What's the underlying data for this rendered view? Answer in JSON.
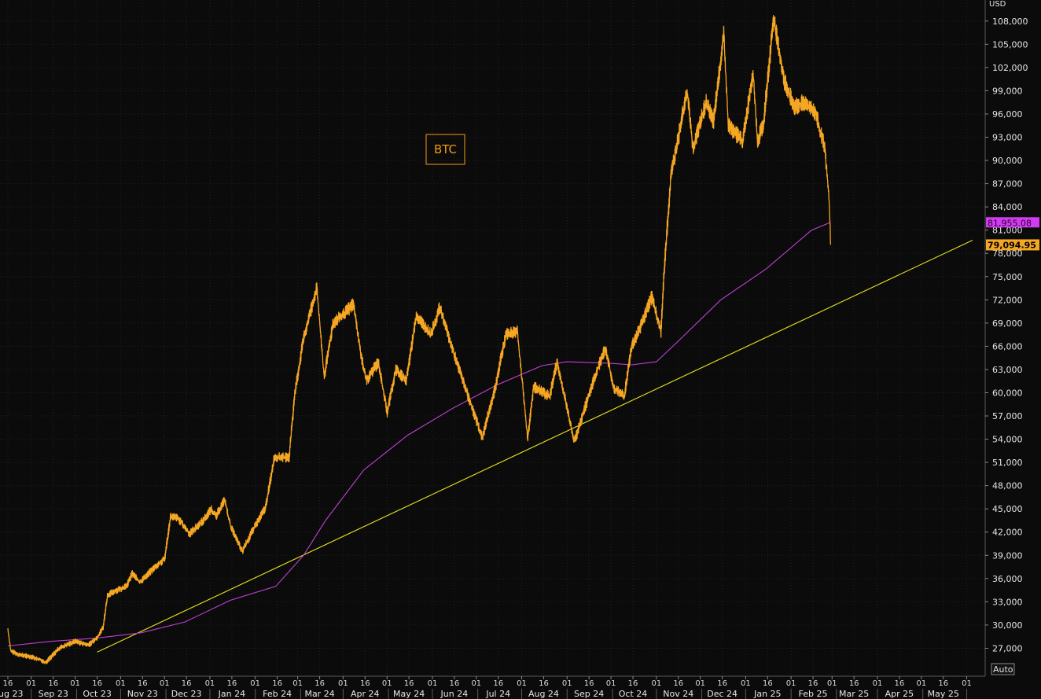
{
  "chart_data": {
    "type": "line",
    "title": "BTC",
    "currency": "USD",
    "colors": {
      "background": "#0b0b0b",
      "grid": "#222222",
      "price": "#f5a623",
      "moving_average": "#c040d8",
      "trendline": "#e8e020",
      "ma_badge": "#d23cf0",
      "price_badge": "#f5a623",
      "axis_text": "#e6e6e6"
    },
    "ylim": [
      24000,
      109500
    ],
    "y_ticks": [
      27000,
      30000,
      33000,
      36000,
      39000,
      42000,
      45000,
      48000,
      51000,
      54000,
      57000,
      60000,
      63000,
      66000,
      69000,
      72000,
      75000,
      78000,
      81000,
      84000,
      87000,
      90000,
      93000,
      96000,
      99000,
      102000,
      105000,
      108000
    ],
    "y_tick_labels": [
      "27,000",
      "30,000",
      "33,000",
      "36,000",
      "39,000",
      "42,000",
      "45,000",
      "48,000",
      "51,000",
      "54,000",
      "57,000",
      "60,000",
      "63,000",
      "66,000",
      "69,000",
      "72,000",
      "75,000",
      "78,000",
      "81,000",
      "84,000",
      "87,000",
      "90,000",
      "93,000",
      "96,000",
      "99,000",
      "102,000",
      "105,000",
      "108,000"
    ],
    "x_range": [
      "2023-08-16",
      "2025-06-05"
    ],
    "x_day_ticks": [
      {
        "date": "2023-08-16",
        "label": "16"
      },
      {
        "date": "2023-09-01",
        "label": "01"
      },
      {
        "date": "2023-09-16",
        "label": "16"
      },
      {
        "date": "2023-10-01",
        "label": "01"
      },
      {
        "date": "2023-10-16",
        "label": "16"
      },
      {
        "date": "2023-11-01",
        "label": "01"
      },
      {
        "date": "2023-11-16",
        "label": "16"
      },
      {
        "date": "2023-12-01",
        "label": "01"
      },
      {
        "date": "2023-12-16",
        "label": "16"
      },
      {
        "date": "2024-01-01",
        "label": "01"
      },
      {
        "date": "2024-01-16",
        "label": "16"
      },
      {
        "date": "2024-02-01",
        "label": "01"
      },
      {
        "date": "2024-02-16",
        "label": "16"
      },
      {
        "date": "2024-03-01",
        "label": "01"
      },
      {
        "date": "2024-03-16",
        "label": "16"
      },
      {
        "date": "2024-04-01",
        "label": "01"
      },
      {
        "date": "2024-04-16",
        "label": "16"
      },
      {
        "date": "2024-05-01",
        "label": "01"
      },
      {
        "date": "2024-05-16",
        "label": "16"
      },
      {
        "date": "2024-06-01",
        "label": "01"
      },
      {
        "date": "2024-06-16",
        "label": "16"
      },
      {
        "date": "2024-07-01",
        "label": "01"
      },
      {
        "date": "2024-07-16",
        "label": "16"
      },
      {
        "date": "2024-08-01",
        "label": "01"
      },
      {
        "date": "2024-08-16",
        "label": "16"
      },
      {
        "date": "2024-09-01",
        "label": "01"
      },
      {
        "date": "2024-09-16",
        "label": "16"
      },
      {
        "date": "2024-10-01",
        "label": "01"
      },
      {
        "date": "2024-10-16",
        "label": "16"
      },
      {
        "date": "2024-11-01",
        "label": "01"
      },
      {
        "date": "2024-11-16",
        "label": "16"
      },
      {
        "date": "2024-12-01",
        "label": "01"
      },
      {
        "date": "2024-12-16",
        "label": "16"
      },
      {
        "date": "2025-01-01",
        "label": "01"
      },
      {
        "date": "2025-01-16",
        "label": "16"
      },
      {
        "date": "2025-02-01",
        "label": "01"
      },
      {
        "date": "2025-02-16",
        "label": "16"
      },
      {
        "date": "2025-03-01",
        "label": "01"
      },
      {
        "date": "2025-03-16",
        "label": "16"
      },
      {
        "date": "2025-04-01",
        "label": "01"
      },
      {
        "date": "2025-04-16",
        "label": "16"
      },
      {
        "date": "2025-05-01",
        "label": "01"
      },
      {
        "date": "2025-05-16",
        "label": "16"
      },
      {
        "date": "2025-06-01",
        "label": "01"
      }
    ],
    "x_month_labels": [
      {
        "date": "2023-08-16",
        "label": "Aug 23"
      },
      {
        "date": "2023-09-16",
        "label": "Sep 23"
      },
      {
        "date": "2023-10-16",
        "label": "Oct 23"
      },
      {
        "date": "2023-11-16",
        "label": "Nov 23"
      },
      {
        "date": "2023-12-16",
        "label": "Dec 23"
      },
      {
        "date": "2024-01-16",
        "label": "Jan 24"
      },
      {
        "date": "2024-02-16",
        "label": "Feb 24"
      },
      {
        "date": "2024-03-16",
        "label": "Mar 24"
      },
      {
        "date": "2024-04-16",
        "label": "Apr 24"
      },
      {
        "date": "2024-05-16",
        "label": "May 24"
      },
      {
        "date": "2024-06-16",
        "label": "Jun 24"
      },
      {
        "date": "2024-07-16",
        "label": "Jul 24"
      },
      {
        "date": "2024-08-16",
        "label": "Aug 24"
      },
      {
        "date": "2024-09-16",
        "label": "Sep 24"
      },
      {
        "date": "2024-10-16",
        "label": "Oct 24"
      },
      {
        "date": "2024-11-16",
        "label": "Nov 24"
      },
      {
        "date": "2024-12-16",
        "label": "Dec 24"
      },
      {
        "date": "2025-01-16",
        "label": "Jan 25"
      },
      {
        "date": "2025-02-16",
        "label": "Feb 25"
      },
      {
        "date": "2025-03-16",
        "label": "Mar 25"
      },
      {
        "date": "2025-04-16",
        "label": "Apr 25"
      },
      {
        "date": "2025-05-16",
        "label": "May 25"
      }
    ],
    "series": [
      {
        "name": "BTC",
        "points": [
          [
            "2023-08-16",
            29400
          ],
          [
            "2023-08-18",
            26600
          ],
          [
            "2023-08-25",
            26100
          ],
          [
            "2023-09-01",
            25900
          ],
          [
            "2023-09-11",
            25200
          ],
          [
            "2023-09-20",
            27000
          ],
          [
            "2023-10-01",
            27900
          ],
          [
            "2023-10-10",
            27400
          ],
          [
            "2023-10-16",
            28400
          ],
          [
            "2023-10-20",
            29700
          ],
          [
            "2023-10-23",
            33800
          ],
          [
            "2023-10-28",
            34400
          ],
          [
            "2023-11-05",
            35000
          ],
          [
            "2023-11-09",
            36700
          ],
          [
            "2023-11-14",
            35500
          ],
          [
            "2023-11-24",
            37400
          ],
          [
            "2023-12-01",
            38500
          ],
          [
            "2023-12-05",
            44000
          ],
          [
            "2023-12-10",
            43800
          ],
          [
            "2023-12-18",
            41800
          ],
          [
            "2023-12-27",
            43400
          ],
          [
            "2024-01-02",
            45000
          ],
          [
            "2024-01-05",
            44000
          ],
          [
            "2024-01-11",
            46200
          ],
          [
            "2024-01-15",
            42800
          ],
          [
            "2024-01-23",
            39500
          ],
          [
            "2024-01-31",
            42500
          ],
          [
            "2024-02-08",
            45200
          ],
          [
            "2024-02-14",
            51700
          ],
          [
            "2024-02-24",
            51600
          ],
          [
            "2024-02-28",
            60000
          ],
          [
            "2024-03-05",
            67000
          ],
          [
            "2024-03-11",
            71500
          ],
          [
            "2024-03-14",
            73500
          ],
          [
            "2024-03-19",
            62000
          ],
          [
            "2024-03-25",
            69000
          ],
          [
            "2024-04-01",
            70000
          ],
          [
            "2024-04-08",
            71500
          ],
          [
            "2024-04-13",
            65000
          ],
          [
            "2024-04-17",
            61500
          ],
          [
            "2024-04-25",
            64000
          ],
          [
            "2024-05-01",
            57500
          ],
          [
            "2024-05-07",
            63000
          ],
          [
            "2024-05-14",
            61500
          ],
          [
            "2024-05-21",
            70000
          ],
          [
            "2024-05-31",
            67500
          ],
          [
            "2024-06-06",
            71000
          ],
          [
            "2024-06-14",
            66000
          ],
          [
            "2024-06-24",
            60300
          ],
          [
            "2024-07-05",
            54200
          ],
          [
            "2024-07-14",
            60800
          ],
          [
            "2024-07-21",
            67500
          ],
          [
            "2024-07-29",
            68000
          ],
          [
            "2024-08-05",
            54000
          ],
          [
            "2024-08-09",
            60800
          ],
          [
            "2024-08-20",
            59500
          ],
          [
            "2024-08-25",
            64000
          ],
          [
            "2024-09-06",
            53700
          ],
          [
            "2024-09-18",
            61000
          ],
          [
            "2024-09-27",
            65800
          ],
          [
            "2024-10-03",
            60500
          ],
          [
            "2024-10-10",
            59500
          ],
          [
            "2024-10-15",
            66000
          ],
          [
            "2024-10-21",
            68500
          ],
          [
            "2024-10-29",
            72500
          ],
          [
            "2024-11-04",
            67800
          ],
          [
            "2024-11-06",
            75000
          ],
          [
            "2024-11-11",
            88500
          ],
          [
            "2024-11-13",
            90000
          ],
          [
            "2024-11-22",
            99000
          ],
          [
            "2024-11-26",
            91500
          ],
          [
            "2024-12-05",
            97500
          ],
          [
            "2024-12-10",
            95000
          ],
          [
            "2024-12-17",
            106500
          ],
          [
            "2024-12-20",
            94500
          ],
          [
            "2024-12-30",
            92500
          ],
          [
            "2025-01-06",
            101500
          ],
          [
            "2025-01-09",
            92500
          ],
          [
            "2025-01-13",
            94500
          ],
          [
            "2025-01-20",
            108500
          ],
          [
            "2025-01-27",
            100500
          ],
          [
            "2025-02-03",
            97000
          ],
          [
            "2025-02-10",
            97500
          ],
          [
            "2025-02-18",
            96000
          ],
          [
            "2025-02-24",
            91500
          ],
          [
            "2025-02-27",
            84500
          ],
          [
            "2025-02-28",
            79100
          ]
        ]
      },
      {
        "name": "",
        "points": [
          [
            "2023-08-16",
            27300
          ],
          [
            "2023-09-15",
            27900
          ],
          [
            "2023-10-15",
            28300
          ],
          [
            "2023-11-15",
            29000
          ],
          [
            "2023-12-15",
            30400
          ],
          [
            "2024-01-15",
            33200
          ],
          [
            "2024-02-15",
            35000
          ],
          [
            "2024-03-05",
            39000
          ],
          [
            "2024-03-20",
            43500
          ],
          [
            "2024-04-15",
            50000
          ],
          [
            "2024-05-15",
            54500
          ],
          [
            "2024-06-15",
            58000
          ],
          [
            "2024-07-15",
            61000
          ],
          [
            "2024-08-15",
            63500
          ],
          [
            "2024-09-01",
            64000
          ],
          [
            "2024-10-01",
            63800
          ],
          [
            "2024-10-15",
            63600
          ],
          [
            "2024-11-01",
            64000
          ],
          [
            "2024-11-15",
            66500
          ],
          [
            "2024-12-15",
            72000
          ],
          [
            "2025-01-15",
            76000
          ],
          [
            "2025-02-15",
            81000
          ],
          [
            "2025-02-28",
            82000
          ]
        ]
      }
    ],
    "trendline": {
      "points": [
        [
          "2023-10-16",
          26500
        ],
        [
          "2025-06-05",
          79700
        ]
      ]
    },
    "last_values": {
      "moving_average": {
        "value": 81955.08,
        "label": "81,955.08"
      },
      "price": {
        "value": 79094.95,
        "label": "79,094.95"
      }
    },
    "auto_button": "Auto"
  }
}
